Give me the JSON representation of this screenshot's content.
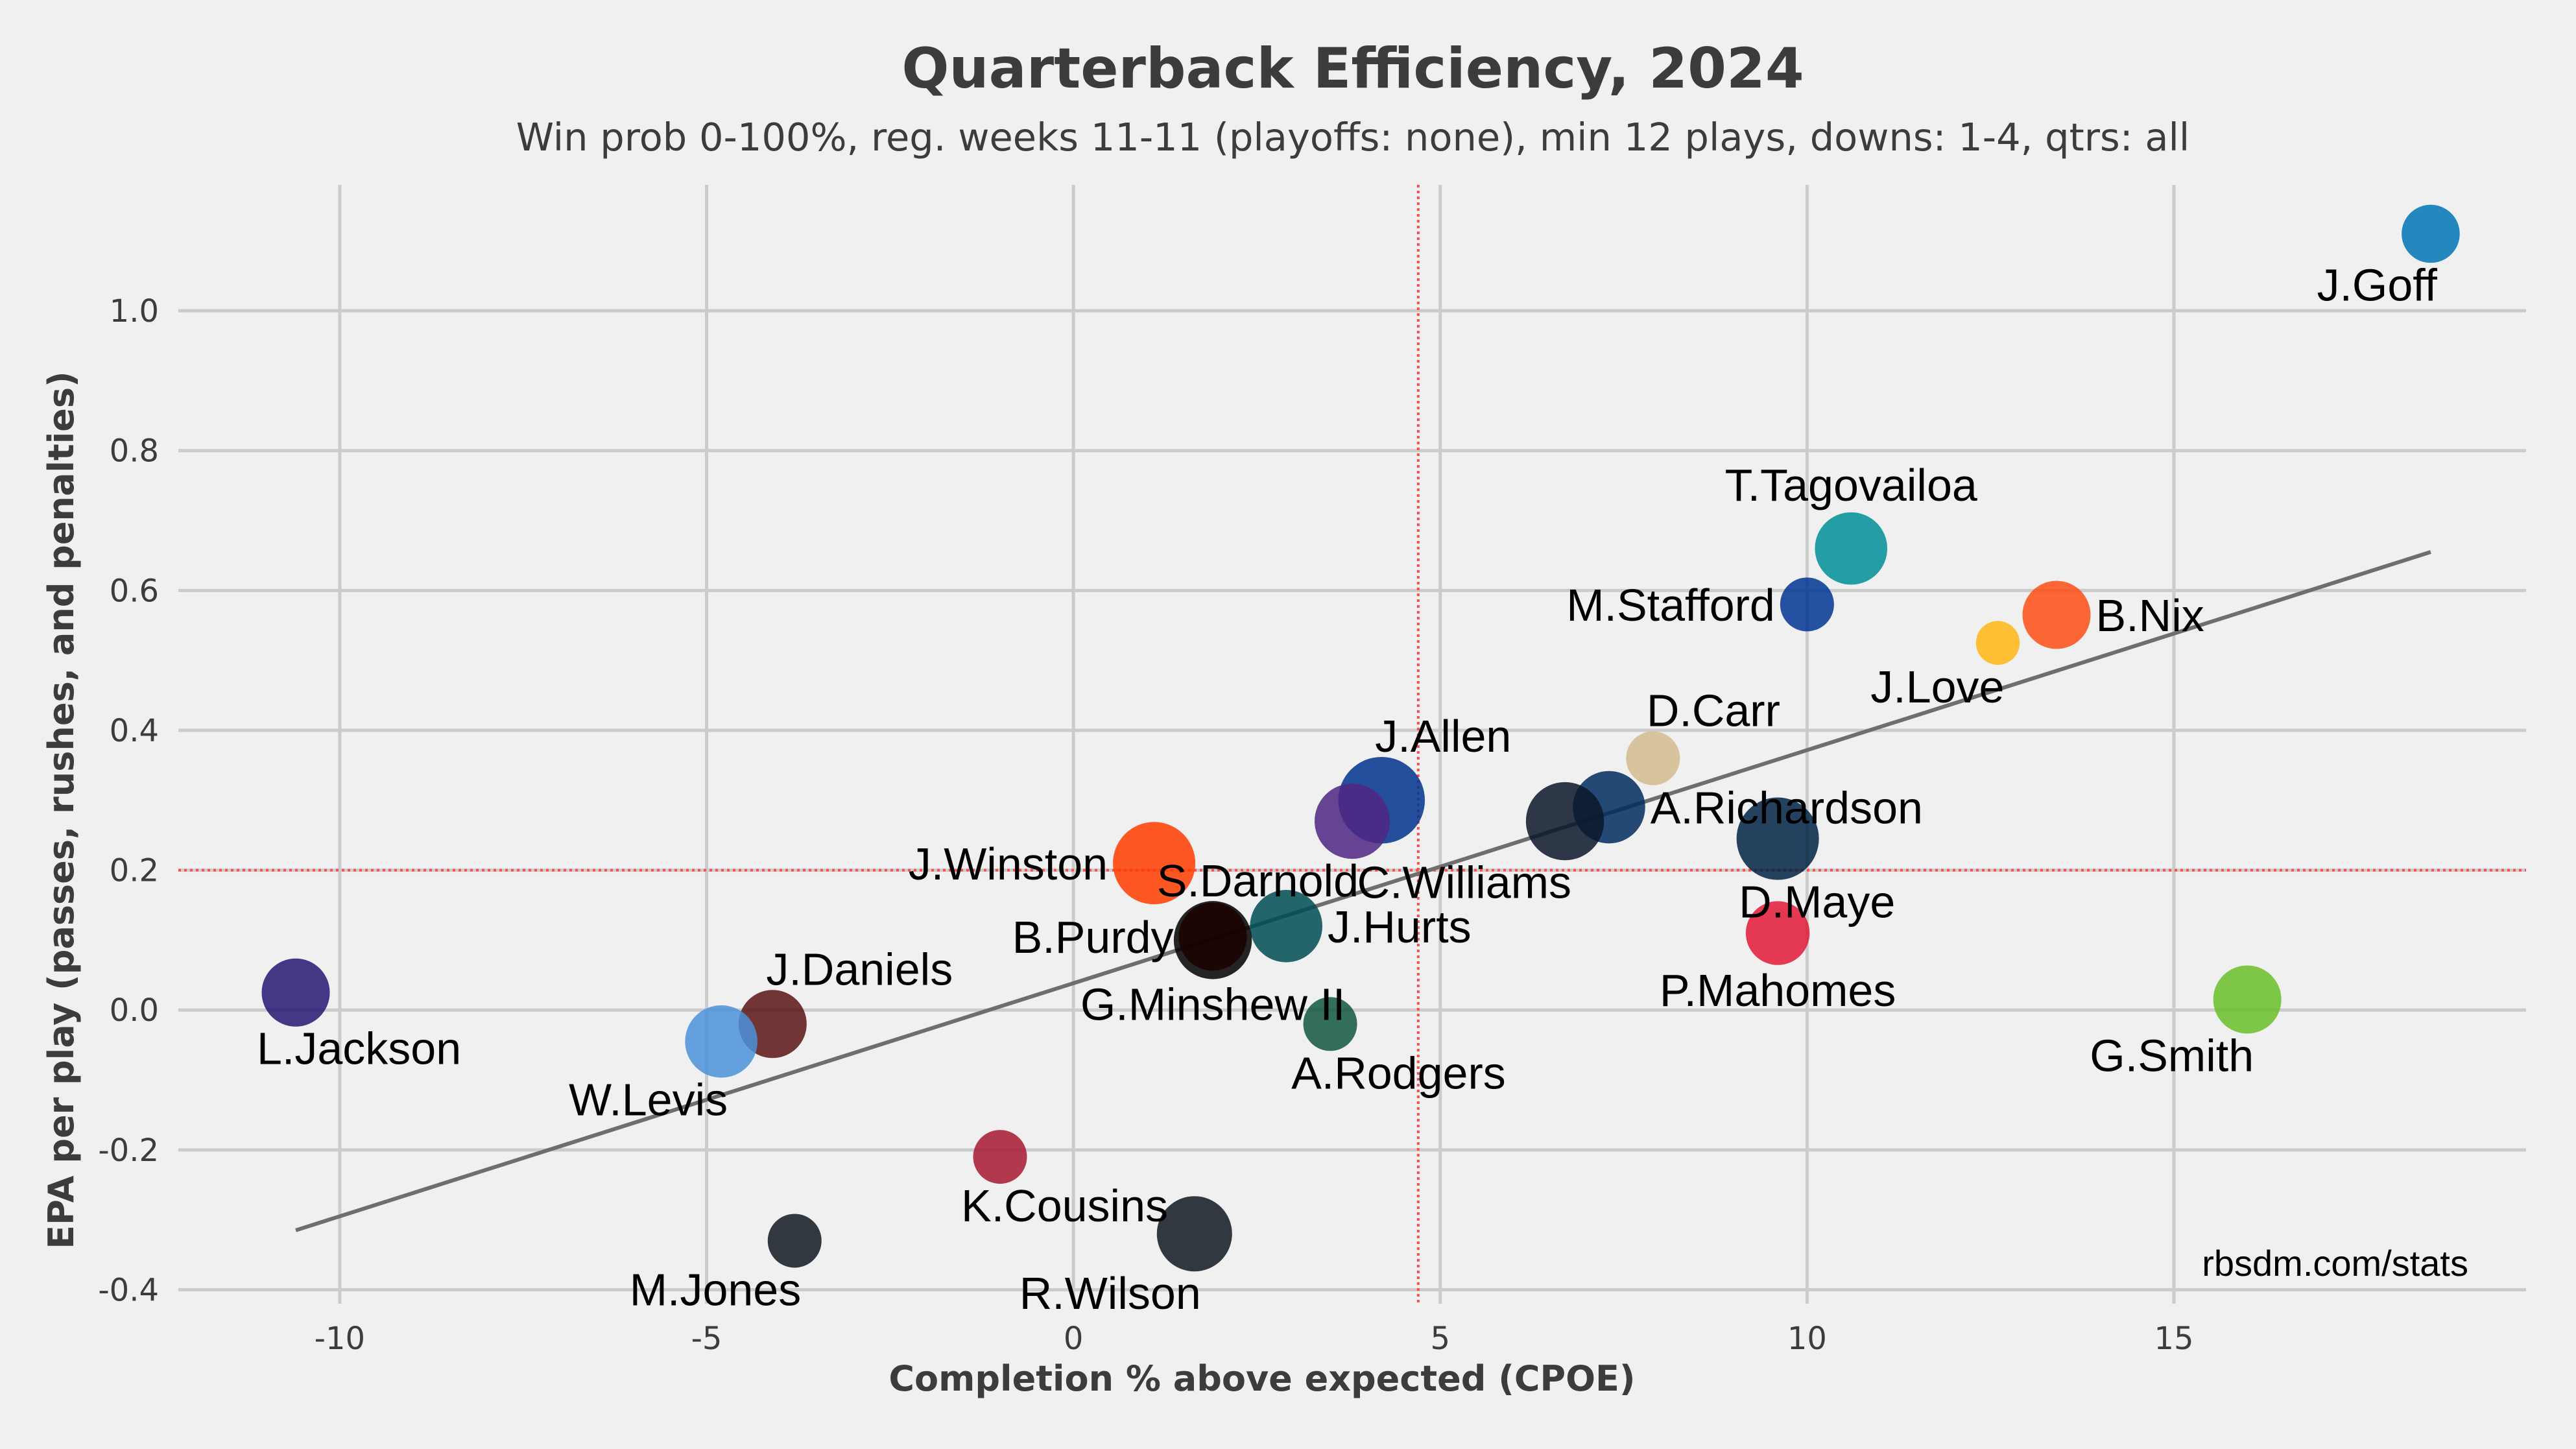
{
  "chart_data": {
    "type": "scatter",
    "title": "Quarterback Efficiency, 2024",
    "subtitle": "Win prob 0-100%, reg. weeks 11-11 (playoffs: none), min 12 plays, downs: 1-4, qtrs: all",
    "xlabel": "Completion % above expected (CPOE)",
    "ylabel": "EPA per play (passes, rushes, and penalties)",
    "credit": "rbsdm.com/stats",
    "xlim": [
      -12.2,
      19.8
    ],
    "ylim": [
      -0.42,
      1.18
    ],
    "xticks": [
      -10,
      -5,
      0,
      5,
      10,
      15
    ],
    "xtick_labels": [
      "-10",
      "-5",
      "0",
      "5",
      "10",
      "15"
    ],
    "yticks": [
      -0.4,
      -0.2,
      0.0,
      0.2,
      0.4,
      0.6,
      0.8,
      1.0
    ],
    "ytick_labels": [
      "-0.4",
      "-0.2",
      "0.0",
      "0.2",
      "0.4",
      "0.6",
      "0.8",
      "1.0"
    ],
    "mean_x": 4.7,
    "mean_y": 0.2,
    "trend_line": {
      "x": [
        -10.6,
        18.5
      ],
      "y": [
        -0.315,
        0.655
      ]
    },
    "points": [
      {
        "name": "J.Goff",
        "x": 18.5,
        "y": 1.11,
        "plays": 28,
        "color": "#0076B6",
        "label_pos": "below-left"
      },
      {
        "name": "T.Tagovailoa",
        "x": 10.6,
        "y": 0.66,
        "plays": 38,
        "color": "#008E97",
        "label_pos": "above"
      },
      {
        "name": "M.Stafford",
        "x": 10.0,
        "y": 0.58,
        "plays": 25,
        "color": "#003594",
        "label_pos": "left"
      },
      {
        "name": "B.Nix",
        "x": 13.4,
        "y": 0.565,
        "plays": 35,
        "color": "#FB4F14",
        "label_pos": "right"
      },
      {
        "name": "J.Love",
        "x": 12.6,
        "y": 0.525,
        "plays": 18,
        "color": "#FFB612",
        "label_pos": "below-left"
      },
      {
        "name": "D.Carr",
        "x": 7.9,
        "y": 0.36,
        "plays": 25,
        "color": "#D3BC8D",
        "label_pos": "above-right"
      },
      {
        "name": "J.Allen",
        "x": 4.2,
        "y": 0.3,
        "plays": 48,
        "color": "#00338D",
        "label_pos": "above-right"
      },
      {
        "name": "A.Richardson",
        "x": 7.3,
        "y": 0.29,
        "plays": 38,
        "color": "#002C5F",
        "label_pos": "right"
      },
      {
        "name": "S.Darnold",
        "x": 3.8,
        "y": 0.27,
        "plays": 40,
        "color": "#4F2683",
        "label_pos": "below-left"
      },
      {
        "name": "C.Williams",
        "x": 6.7,
        "y": 0.27,
        "plays": 42,
        "color": "#0B162A",
        "label_pos": "below-left"
      },
      {
        "name": "D.Maye",
        "x": 9.6,
        "y": 0.245,
        "plays": 45,
        "color": "#002244",
        "label_pos": "below-right"
      },
      {
        "name": "J.Winston",
        "x": 1.1,
        "y": 0.21,
        "plays": 45,
        "color": "#FF3C00",
        "label_pos": "left"
      },
      {
        "name": "J.Hurts",
        "x": 2.9,
        "y": 0.12,
        "plays": 38,
        "color": "#004C54",
        "label_pos": "right"
      },
      {
        "name": "P.Mahomes",
        "x": 9.6,
        "y": 0.11,
        "plays": 32,
        "color": "#E31837",
        "label_pos": "below"
      },
      {
        "name": "B.Purdy",
        "x": 1.9,
        "y": 0.105,
        "plays": 35,
        "color": "#AA0000",
        "label_pos": "left"
      },
      {
        "name": "G.Minshew II",
        "x": 1.9,
        "y": 0.1,
        "plays": 42,
        "color": "#000000",
        "label_pos": "below"
      },
      {
        "name": "L.Jackson",
        "x": -10.6,
        "y": 0.025,
        "plays": 35,
        "color": "#241773",
        "label_pos": "below-right"
      },
      {
        "name": "G.Smith",
        "x": 16.0,
        "y": 0.015,
        "plays": 35,
        "color": "#69BE28",
        "label_pos": "below-left"
      },
      {
        "name": "J.Daniels",
        "x": -4.1,
        "y": -0.02,
        "plays": 35,
        "color": "#5A1414",
        "label_pos": "above-right"
      },
      {
        "name": "A.Rodgers",
        "x": 3.5,
        "y": -0.02,
        "plays": 25,
        "color": "#125740",
        "label_pos": "below-right"
      },
      {
        "name": "W.Levis",
        "x": -4.8,
        "y": -0.045,
        "plays": 38,
        "color": "#4B92DB",
        "label_pos": "below-left"
      },
      {
        "name": "K.Cousins",
        "x": -1.0,
        "y": -0.21,
        "plays": 25,
        "color": "#A71930",
        "label_pos": "below-right"
      },
      {
        "name": "M.Jones",
        "x": -3.8,
        "y": -0.33,
        "plays": 25,
        "color": "#101820",
        "label_pos": "below-left"
      },
      {
        "name": "R.Wilson",
        "x": 1.65,
        "y": -0.32,
        "plays": 40,
        "color": "#101820",
        "label_pos": "below-left"
      }
    ]
  }
}
